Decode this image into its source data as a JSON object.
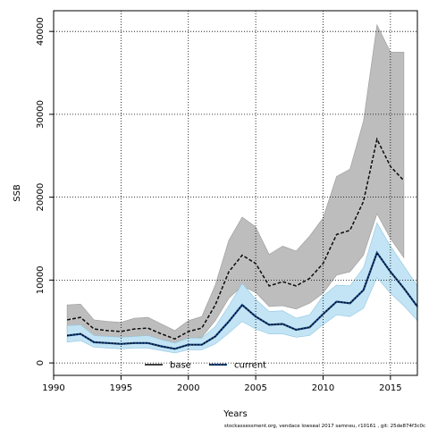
{
  "chart_data": {
    "type": "line",
    "xlabel": "Years",
    "ylabel": "SSB",
    "xlim": [
      1990,
      2017
    ],
    "ylim": [
      -1500,
      42500
    ],
    "xticks": [
      1990,
      1995,
      2000,
      2005,
      2010,
      2015
    ],
    "yticks": [
      0,
      10000,
      20000,
      30000,
      40000
    ],
    "grid": true,
    "legend_position": "bottom-left",
    "x": [
      1991,
      1992,
      1993,
      1994,
      1995,
      1996,
      1997,
      1998,
      1999,
      2000,
      2001,
      2002,
      2003,
      2004,
      2005,
      2006,
      2007,
      2008,
      2009,
      2010,
      2011,
      2012,
      2013,
      2014,
      2015,
      2016,
      2017
    ],
    "series": [
      {
        "name": "base",
        "color": "#222222",
        "band_color": "#bdbdbd",
        "band_edge": "#9a9a9a",
        "line_style": "dashed-black-on-grey",
        "values": [
          5200,
          5500,
          4100,
          3900,
          3800,
          4100,
          4200,
          3500,
          2900,
          3800,
          4200,
          7000,
          11000,
          13000,
          12000,
          9300,
          9800,
          9300,
          10200,
          12000,
          15500,
          16000,
          19500,
          27000,
          23700,
          22000,
          null
        ],
        "lower": [
          3800,
          4000,
          3100,
          3000,
          2900,
          3100,
          3200,
          2600,
          2000,
          2800,
          3100,
          5100,
          7800,
          9300,
          8500,
          6800,
          6900,
          6500,
          7200,
          8400,
          10600,
          11000,
          13000,
          18000,
          15000,
          12700,
          null
        ],
        "upper": [
          7000,
          7100,
          5200,
          5000,
          4900,
          5400,
          5500,
          4700,
          3900,
          5100,
          5600,
          9400,
          14800,
          17600,
          16400,
          13100,
          14100,
          13500,
          15300,
          17500,
          22500,
          23400,
          29200,
          40800,
          37500,
          37500,
          null
        ]
      },
      {
        "name": "current",
        "color": "#1a4a88",
        "band_color": "#c3e4f4",
        "band_edge": "#8fc6e2",
        "line_style": "dotted-black-on-blue",
        "values": [
          3300,
          3500,
          2500,
          2400,
          2300,
          2400,
          2400,
          2000,
          1700,
          2200,
          2200,
          3200,
          5000,
          7000,
          5600,
          4600,
          4700,
          4000,
          4300,
          5900,
          7400,
          7200,
          8800,
          13300,
          11000,
          9000,
          6800
        ],
        "lower": [
          2500,
          2700,
          1900,
          1800,
          1700,
          1800,
          1800,
          1500,
          1200,
          1600,
          1600,
          2300,
          3600,
          5000,
          4100,
          3500,
          3500,
          3100,
          3300,
          4600,
          5800,
          5600,
          6600,
          10300,
          8400,
          6900,
          5100
        ],
        "upper": [
          4500,
          4600,
          3300,
          3200,
          3100,
          3200,
          3300,
          2800,
          2400,
          3000,
          3000,
          4400,
          6900,
          9600,
          7700,
          6200,
          6300,
          5400,
          5800,
          8100,
          9400,
          9300,
          11500,
          16900,
          14100,
          11700,
          9300
        ]
      }
    ]
  },
  "footer": "stockassessment.org, vendace lowseal 2017 samneu, r10161 , git: 25de874f3c0c"
}
